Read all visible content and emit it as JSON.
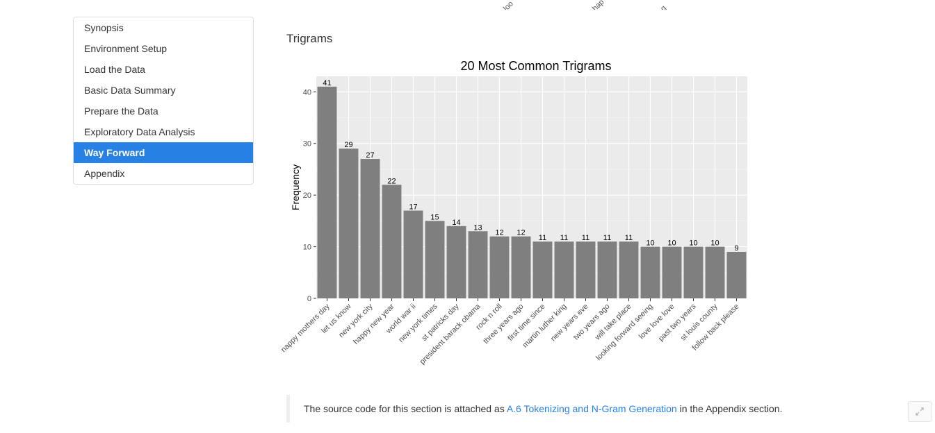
{
  "toc": {
    "items": [
      {
        "label": "Synopsis",
        "active": false
      },
      {
        "label": "Environment Setup",
        "active": false
      },
      {
        "label": "Load the Data",
        "active": false
      },
      {
        "label": "Basic Data Summary",
        "active": false
      },
      {
        "label": "Prepare the Data",
        "active": false
      },
      {
        "label": "Exploratory Data Analysis",
        "active": false
      },
      {
        "label": "Way Forward",
        "active": true
      },
      {
        "label": "Appendix",
        "active": false
      }
    ]
  },
  "prev_chart_cutoff_labels": [
    "loo",
    "",
    "hap",
    "g"
  ],
  "section": {
    "heading": "Trigrams"
  },
  "chart_data": {
    "type": "bar",
    "title": "20 Most Common Trigrams",
    "xlabel": "",
    "ylabel": "Frequency",
    "ylim": [
      0,
      43
    ],
    "yticks": [
      0,
      10,
      20,
      30,
      40
    ],
    "grid": true,
    "categories": [
      "happy mothers day",
      "let us know",
      "new york city",
      "happy new year",
      "world war ii",
      "new york times",
      "st patricks day",
      "president barack obama",
      "rock n roll",
      "three years ago",
      "first time since",
      "martin luther king",
      "new years eve",
      "two years ago",
      "will take place",
      "looking forward seeing",
      "love love love",
      "past two years",
      "st louis county",
      "follow back please"
    ],
    "values": [
      41,
      29,
      27,
      22,
      17,
      15,
      14,
      13,
      12,
      12,
      11,
      11,
      11,
      11,
      11,
      10,
      10,
      10,
      10,
      9
    ],
    "colors": {
      "panel": "#ebebeb",
      "bar": "#7f7f7f",
      "grid": "#ffffff"
    }
  },
  "note": {
    "prefix": "The source code for this section is attached as ",
    "link": "A.6 Tokenizing and N-Gram Generation",
    "suffix": " in the Appendix section."
  },
  "colors": {
    "accent": "#2780e3"
  }
}
